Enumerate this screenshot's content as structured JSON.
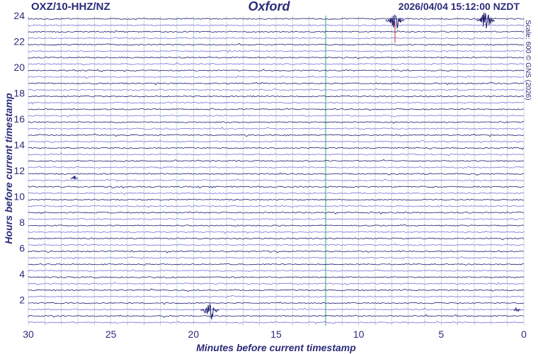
{
  "header": {
    "station": "OXZ/10-HHZ/NZ",
    "place": "Oxford",
    "timestamp": "2026/04/04 15:12:00 NZDT",
    "scale_note": "Scale: 600 © GNS (2026)"
  },
  "colors": {
    "trace_dark": "#1c1c6e",
    "trace_light": "#7a6fd6",
    "grid": "#9ec5d8",
    "grid_highlight": "#3a9e80",
    "event_marker": "#c03030",
    "text": "#2b2b7a"
  },
  "chart_data": {
    "type": "line",
    "title": "Oxford",
    "xlabel": "Minutes before current timestamp",
    "ylabel": "Hours before current timestamp",
    "xlim": [
      30,
      0
    ],
    "ylim": [
      0,
      24
    ],
    "x_ticks": [
      30,
      25,
      20,
      15,
      10,
      5,
      0
    ],
    "y_ticks": [
      2,
      4,
      6,
      8,
      10,
      12,
      14,
      16,
      18,
      20,
      22,
      24
    ],
    "traces_per_hour": 2,
    "grid": true,
    "events": [
      {
        "hour_row": 1.2,
        "minute": 19.0,
        "amplitude": "large"
      },
      {
        "hour_row": 1.2,
        "minute": 0.4,
        "amplitude": "medium"
      },
      {
        "hour_row": 11.4,
        "minute": 27.2,
        "amplitude": "small"
      },
      {
        "hour_row": 23.6,
        "minute": 7.8,
        "amplitude": "large"
      },
      {
        "hour_row": 23.6,
        "minute": 2.3,
        "amplitude": "large"
      }
    ]
  }
}
